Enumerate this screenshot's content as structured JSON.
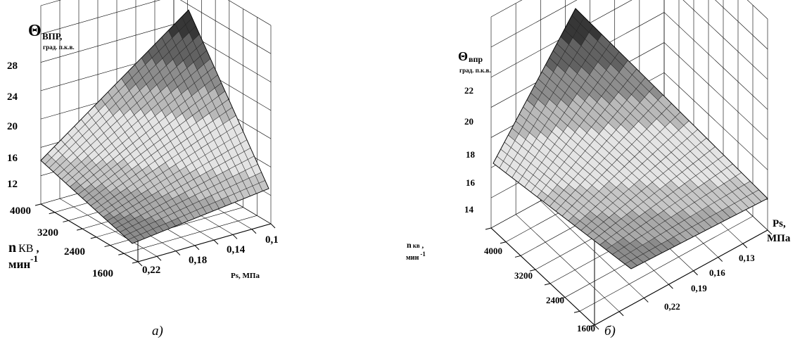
{
  "chart_data": [
    {
      "type": "surface3d",
      "caption": "а)",
      "zlabel": {
        "symbol": "Θ",
        "sub": "ВПР",
        "suffix": ",",
        "units": "град. п.к.в."
      },
      "xlabel": "Ps, МПа",
      "ylabel": {
        "main": "n",
        "sub": "КВ",
        "suffix": " ,",
        "units": "мин",
        "exp": "-1"
      },
      "z_ticks": [
        "12",
        "16",
        "20",
        "24",
        "28"
      ],
      "y_ticks": [
        "4000",
        "3200",
        "2400",
        "1600"
      ],
      "x_ticks": [
        "0,22",
        "0,18",
        "0,14",
        "0,1"
      ],
      "zlim": [
        12,
        28
      ],
      "surface_corners": [
        {
          "ps": 0.22,
          "n": 4000,
          "theta": 15.5
        },
        {
          "ps": 0.1,
          "n": 4000,
          "theta": 28.5
        },
        {
          "ps": 0.1,
          "n": 1600,
          "theta": 15
        },
        {
          "ps": 0.22,
          "n": 1600,
          "theta": 9.5
        }
      ]
    },
    {
      "type": "surface3d",
      "caption": "б)",
      "zlabel": {
        "symbol": "Θ",
        "sub": "впр",
        "suffix": "",
        "units": "град. п.к.в."
      },
      "xlabel": {
        "name": "Ps,",
        "units": "МПа"
      },
      "ylabel": {
        "main": "n",
        "sub": "кв",
        "suffix": " ,",
        "units": "мин",
        "exp": "-1"
      },
      "z_ticks": [
        "14",
        "16",
        "18",
        "20",
        "22"
      ],
      "y_ticks": [
        "4000",
        "3200",
        "2400",
        "1600"
      ],
      "x_ticks": [
        "0,13",
        "0,16",
        "0,19",
        "0,22"
      ],
      "zlim": [
        13,
        23
      ],
      "surface_corners": [
        {
          "ps": 0.22,
          "n": 4000,
          "theta": 17
        },
        {
          "ps": 0.13,
          "n": 4000,
          "theta": 24
        },
        {
          "ps": 0.13,
          "n": 1600,
          "theta": 14.5
        },
        {
          "ps": 0.22,
          "n": 1600,
          "theta": 11
        }
      ]
    }
  ]
}
